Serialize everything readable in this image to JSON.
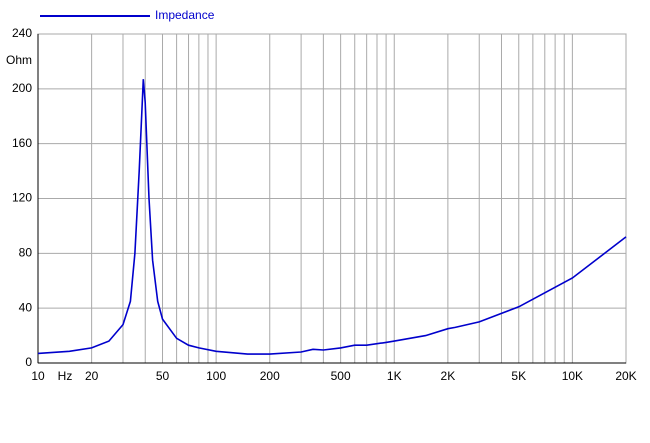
{
  "chart_data": {
    "type": "line",
    "ylabel": "Ohm",
    "xlabel": "Hz",
    "log_x": true,
    "grid": true,
    "legend": "top-left",
    "xlim": [
      10,
      20000
    ],
    "ylim": [
      0,
      240
    ],
    "yticks": [
      0,
      40,
      80,
      120,
      160,
      200,
      240
    ],
    "xticks": [
      10,
      20,
      50,
      100,
      200,
      500,
      {
        "value": 1000,
        "label": "1K"
      },
      {
        "value": 2000,
        "label": "2K"
      },
      {
        "value": 5000,
        "label": "5K"
      },
      {
        "value": 10000,
        "label": "10K"
      },
      {
        "value": 20000,
        "label": "20K"
      }
    ],
    "xminor": [
      30,
      40,
      60,
      70,
      80,
      90,
      300,
      400,
      600,
      700,
      800,
      900,
      3000,
      4000,
      6000,
      7000,
      8000,
      9000
    ],
    "series": [
      {
        "name": "Impedance",
        "color": "#0000cc",
        "x": [
          10,
          15,
          20,
          25,
          30,
          33,
          35,
          37,
          39,
          40,
          42,
          44,
          47,
          50,
          60,
          70,
          80,
          100,
          150,
          200,
          300,
          350,
          400,
          500,
          600,
          700,
          900,
          1000,
          1500,
          2000,
          2200,
          3000,
          5000,
          10000,
          20000
        ],
        "values": [
          7,
          8.5,
          11,
          16,
          28,
          45,
          80,
          140,
          207,
          190,
          120,
          75,
          45,
          32,
          18,
          13,
          11,
          8.5,
          6.5,
          6.5,
          8,
          10,
          9.5,
          11,
          13,
          13,
          15,
          16,
          20,
          25,
          26,
          30,
          41,
          62,
          92
        ]
      }
    ]
  }
}
